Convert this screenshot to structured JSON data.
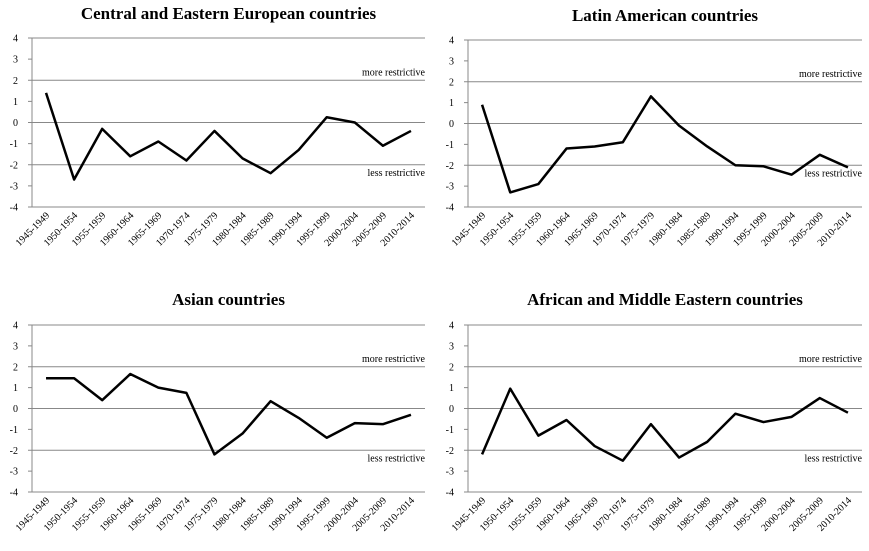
{
  "chart_data": [
    {
      "type": "line",
      "title": "Central and Eastern European countries",
      "categories": [
        "1945-1949",
        "1950-1954",
        "1955-1959",
        "1960-1964",
        "1965-1969",
        "1970-1974",
        "1975-1979",
        "1980-1984",
        "1985-1989",
        "1990-1994",
        "1995-1999",
        "2000-2004",
        "2005-2009",
        "2010-2014"
      ],
      "values": [
        1.4,
        -2.7,
        -0.3,
        -1.6,
        -0.9,
        -1.8,
        -0.4,
        -1.7,
        -2.4,
        -1.3,
        0.25,
        0.0,
        -1.1,
        -0.4
      ],
      "color": "#000000",
      "ylim": [
        -4,
        4
      ],
      "yticks": [
        -4,
        -3,
        -2,
        -1,
        0,
        1,
        2,
        3,
        4
      ],
      "grid": true,
      "annotations": [
        "more restrictive",
        "less restrictive"
      ]
    },
    {
      "type": "line",
      "title": "Latin American countries",
      "categories": [
        "1945-1949",
        "1950-1954",
        "1955-1959",
        "1960-1964",
        "1965-1969",
        "1970-1974",
        "1975-1979",
        "1980-1984",
        "1985-1989",
        "1990-1994",
        "1995-1999",
        "2000-2004",
        "2005-2009",
        "2010-2014"
      ],
      "values": [
        0.9,
        -3.3,
        -2.9,
        -1.2,
        -1.1,
        -0.9,
        1.3,
        -0.1,
        -1.1,
        -2.0,
        -2.05,
        -2.45,
        -1.5,
        -2.1
      ],
      "color": "#000000",
      "ylim": [
        -4,
        4
      ],
      "yticks": [
        -4,
        -3,
        -2,
        -1,
        0,
        1,
        2,
        3,
        4
      ],
      "grid": true,
      "annotations": [
        "more restrictive",
        "less restrictive"
      ]
    },
    {
      "type": "line",
      "title": "Asian countries",
      "categories": [
        "1945-1949",
        "1950-1954",
        "1955-1959",
        "1960-1964",
        "1965-1969",
        "1970-1974",
        "1975-1979",
        "1980-1984",
        "1985-1989",
        "1990-1994",
        "1995-1999",
        "2000-2004",
        "2005-2009",
        "2010-2014"
      ],
      "values": [
        1.45,
        1.45,
        0.4,
        1.65,
        1.0,
        0.75,
        -2.2,
        -1.2,
        0.35,
        -0.45,
        -1.4,
        -0.7,
        -0.75,
        -0.3
      ],
      "color": "#000000",
      "ylim": [
        -4,
        4
      ],
      "yticks": [
        -4,
        -3,
        -2,
        -1,
        0,
        1,
        2,
        3,
        4
      ],
      "grid": true,
      "annotations": [
        "more restrictive",
        "less restrictive"
      ]
    },
    {
      "type": "line",
      "title": "African and Middle Eastern countries",
      "categories": [
        "1945-1949",
        "1950-1954",
        "1955-1959",
        "1960-1964",
        "1965-1969",
        "1970-1974",
        "1975-1979",
        "1980-1984",
        "1985-1989",
        "1990-1994",
        "1995-1999",
        "2000-2004",
        "2005-2009",
        "2010-2014"
      ],
      "values": [
        -2.2,
        0.95,
        -1.3,
        -0.55,
        -1.8,
        -2.5,
        -0.75,
        -2.35,
        -1.6,
        -0.25,
        -0.65,
        -0.4,
        0.5,
        -0.2
      ],
      "color": "#000000",
      "ylim": [
        -4,
        4
      ],
      "yticks": [
        -4,
        -3,
        -2,
        -1,
        0,
        1,
        2,
        3,
        4
      ],
      "grid": true,
      "annotations": [
        "more restrictive",
        "less restrictive"
      ]
    }
  ]
}
